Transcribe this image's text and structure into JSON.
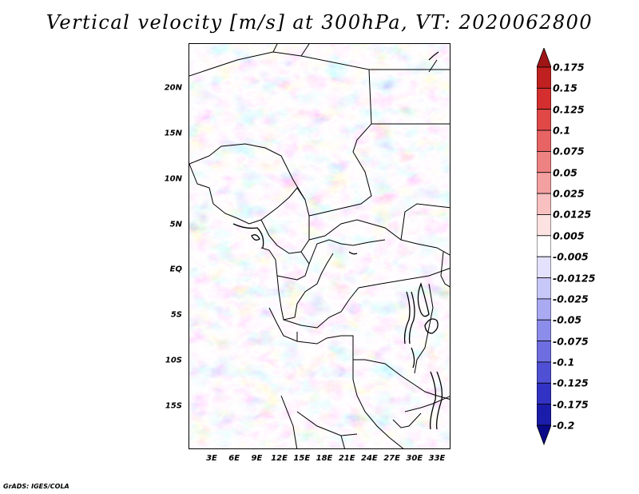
{
  "title": "Vertical velocity [m/s] at 300hPa, VT: 2020062800",
  "credit": "GrADS: IGES/COLA",
  "lat_ticks": [
    "20N",
    "15N",
    "10N",
    "5N",
    "EQ",
    "5S",
    "10S",
    "15S"
  ],
  "lon_ticks": [
    "3E",
    "6E",
    "9E",
    "12E",
    "15E",
    "18E",
    "21E",
    "24E",
    "27E",
    "30E",
    "33E"
  ],
  "colorbar": {
    "labels": [
      "0.175",
      "0.15",
      "0.125",
      "0.1",
      "0.075",
      "0.05",
      "0.025",
      "0.0125",
      "0.005",
      "-0.005",
      "-0.0125",
      "-0.025",
      "-0.05",
      "-0.075",
      "-0.1",
      "-0.125",
      "-0.175",
      "-0.2"
    ],
    "colors": [
      "#a01515",
      "#c02020",
      "#d42e2e",
      "#e04848",
      "#e86464",
      "#ee8282",
      "#f3a0a0",
      "#f8c0c0",
      "#fde2e2",
      "#ffffff",
      "#e2e2fd",
      "#c8c8f8",
      "#aaaaf2",
      "#8c8cea",
      "#6e6ee0",
      "#5050d4",
      "#3232c4",
      "#1c1caa",
      "#0a0a88"
    ]
  },
  "map": {
    "lon_range": [
      0,
      34.5
    ],
    "lat_range": [
      -20,
      24.5
    ],
    "field": "vertical_velocity",
    "level": "300hPa",
    "valid_time": "2020062800",
    "units": "m/s"
  }
}
